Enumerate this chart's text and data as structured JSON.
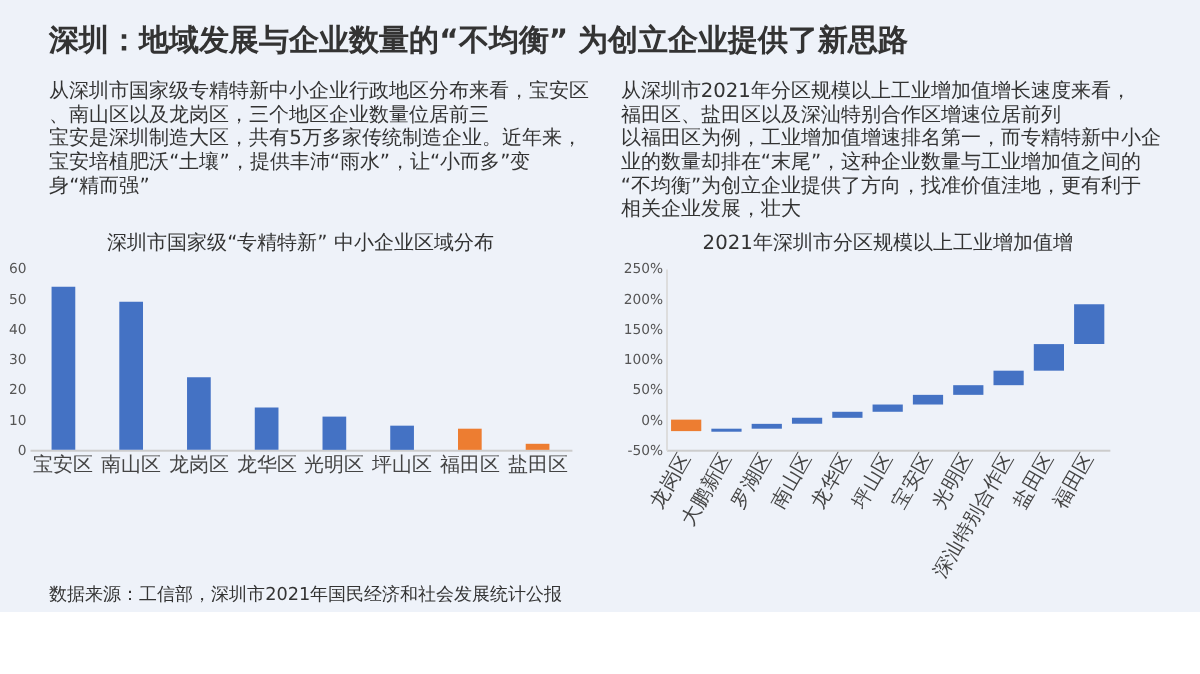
{
  "chart_data": [
    {
      "type": "bar",
      "title": "深圳市国家级“专精特新” 中小企业区域分布",
      "annotations": [
        "深圳：地域发展与企业数量的“不均衡” 为创立企业提供了新思路",
        "从深圳市国家级专精特新中小企业行政地区分布来看，宝安区、南山区以及龙岗区，三个地区企业数量位居前三",
        "宝安是深圳制造大区，共有5万多家传统制造企业。近年来，宝安培植肥沃“土壤”，提供丰沛“雨水”，让“小而多”变身“精而强”",
        "数据来源：工信部，深圳市2021年国民经济和社会发展统计公报"
      ],
      "categories": [
        "宝安区",
        "南山区",
        "龙岗区",
        "龙华区",
        "光明区",
        "坪山区",
        "福田区",
        "盐田区"
      ],
      "values": [
        54,
        49,
        24,
        14,
        11,
        8,
        7,
        2
      ],
      "colors": [
        "#4472c4",
        "#4472c4",
        "#4472c4",
        "#4472c4",
        "#4472c4",
        "#4472c4",
        "#ed7d31",
        "#ed7d31"
      ],
      "ylim": [
        0,
        60
      ],
      "yticks": [
        0,
        10,
        20,
        30,
        40,
        50,
        60
      ],
      "grid": false
    },
    {
      "type": "bar",
      "title": "2021年深圳市分区规模以上工业增加值增",
      "annotations": [
        "从深圳市2021年分区规模以上工业增加值增长速度来看，福田区、盐田区以及深汕特别合作区增速位居前列",
        "以福田区为例，工业增加值增速排名第一，而专精特新中小企业的数量却排在“末尾”，这种企业数量与工业增加值之间的“不均衡”为创立企业提供了方向，找准价值洼地，更有利于相关企业发展，壮大"
      ],
      "categories": [
        "龙岗区",
        "大鹏新区",
        "罗湖区",
        "南山区",
        "龙华区",
        "坪山区",
        "宝安区",
        "光明区",
        "深汕特别合作区",
        "盐田区",
        "福田区"
      ],
      "base": [
        0,
        -20,
        -15,
        -7,
        3,
        13,
        25,
        41,
        57,
        81,
        125
      ],
      "values": [
        -19,
        5,
        8,
        10,
        10,
        12,
        16,
        16,
        24,
        44,
        66
      ],
      "colors": [
        "#ed7d31",
        "#4472c4",
        "#4472c4",
        "#4472c4",
        "#4472c4",
        "#4472c4",
        "#4472c4",
        "#4472c4",
        "#4472c4",
        "#4472c4",
        "#4472c4"
      ],
      "ylim": [
        -50,
        250
      ],
      "yticks": [
        {
          "value": -50,
          "label": "-50%"
        },
        {
          "value": 0,
          "label": "0%"
        },
        {
          "value": 50,
          "label": "50%"
        },
        {
          "value": 100,
          "label": "100%"
        },
        {
          "value": 150,
          "label": "150%"
        },
        {
          "value": 200,
          "label": "200%"
        },
        {
          "value": 250,
          "label": "250%"
        }
      ],
      "grid": false
    }
  ]
}
